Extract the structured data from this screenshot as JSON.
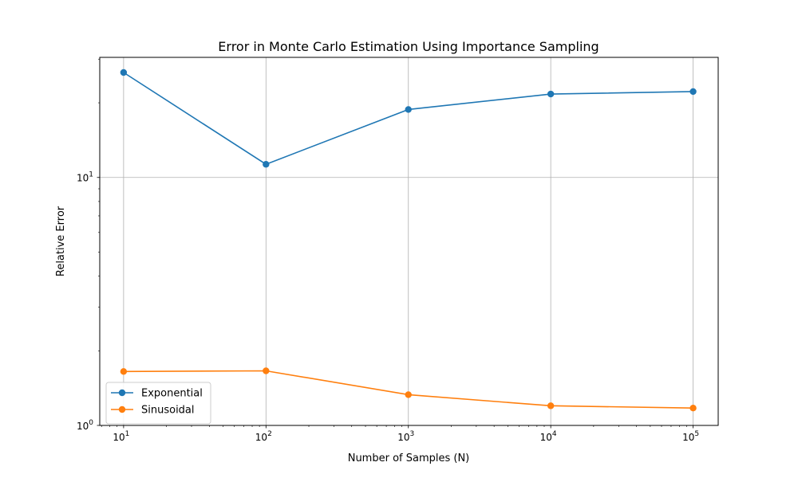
{
  "chart_data": {
    "type": "line",
    "title": "Error in Monte Carlo Estimation Using Importance Sampling",
    "xlabel": "Number of Samples (N)",
    "ylabel": "Relative Error",
    "x_scale": "log",
    "y_scale": "log",
    "x": [
      10,
      100,
      1000,
      10000,
      100000
    ],
    "xlim": [
      6.8,
      150000
    ],
    "ylim": [
      1.0,
      30.5
    ],
    "x_ticks": [
      {
        "value": 10,
        "base": "10",
        "exp": "1"
      },
      {
        "value": 100,
        "base": "10",
        "exp": "2"
      },
      {
        "value": 1000,
        "base": "10",
        "exp": "3"
      },
      {
        "value": 10000,
        "base": "10",
        "exp": "4"
      },
      {
        "value": 100000,
        "base": "10",
        "exp": "5"
      }
    ],
    "y_ticks": [
      {
        "value": 1,
        "base": "10",
        "exp": "0"
      },
      {
        "value": 10,
        "base": "10",
        "exp": "1"
      }
    ],
    "grid": true,
    "legend_position": "lower-left",
    "series": [
      {
        "name": "Exponential",
        "color": "#1f77b4",
        "values": [
          26.5,
          11.3,
          18.8,
          21.7,
          22.2
        ]
      },
      {
        "name": "Sinusoidal",
        "color": "#ff7f0e",
        "values": [
          1.65,
          1.66,
          1.33,
          1.2,
          1.175
        ]
      }
    ]
  }
}
